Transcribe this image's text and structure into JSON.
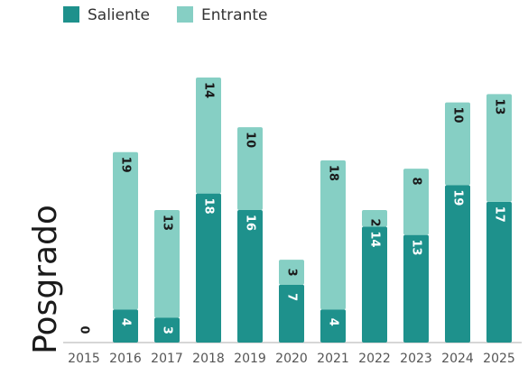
{
  "chart_data": {
    "type": "stacked_bar",
    "y_label": "Posgrado",
    "categories": [
      "2015",
      "2016",
      "2017",
      "2018",
      "2019",
      "2020",
      "2021",
      "2022",
      "2023",
      "2024",
      "2025"
    ],
    "series": [
      {
        "name": "Saliente",
        "color": "#1e918c",
        "values": [
          0,
          4,
          3,
          18,
          16,
          7,
          4,
          14,
          13,
          19,
          17
        ]
      },
      {
        "name": "Entrante",
        "color": "#86cfc4",
        "values": [
          null,
          19,
          13,
          14,
          10,
          3,
          18,
          2,
          8,
          10,
          13
        ]
      }
    ],
    "legend": "top-left"
  }
}
